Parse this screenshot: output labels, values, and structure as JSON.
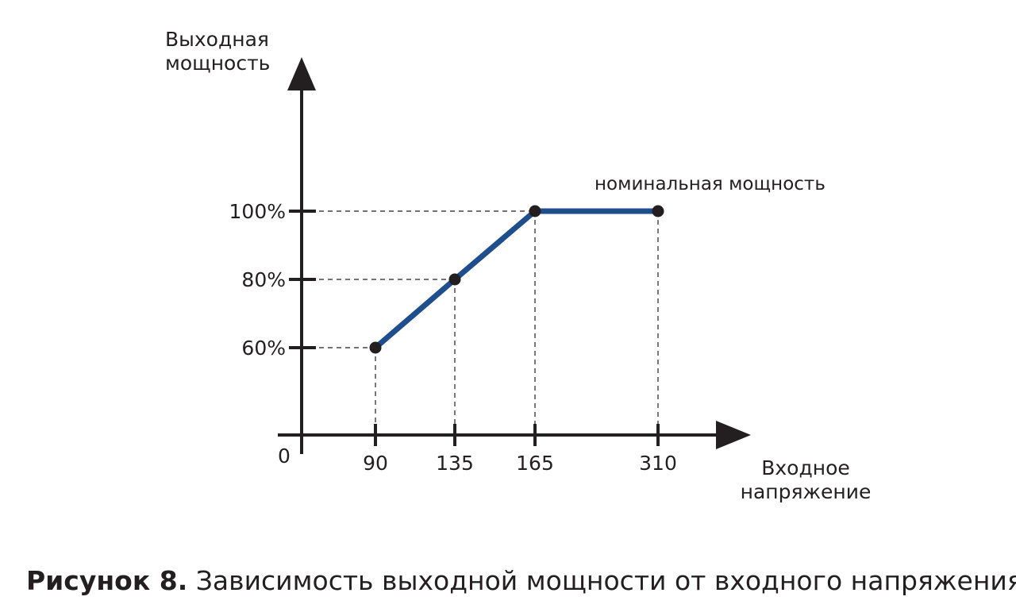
{
  "chart_data": {
    "type": "line",
    "xlabel": "Входное напряжение",
    "xlabel_lines": [
      "Входное",
      "напряжение"
    ],
    "ylabel": "Выходная мощность",
    "ylabel_lines": [
      "Выходная",
      "мощность"
    ],
    "origin_label": "0",
    "x_ticks": [
      {
        "value": 90,
        "label": "90"
      },
      {
        "value": 135,
        "label": "135"
      },
      {
        "value": 165,
        "label": "165"
      },
      {
        "value": 310,
        "label": "310"
      }
    ],
    "y_ticks": [
      {
        "value": 60,
        "label": "60%"
      },
      {
        "value": 80,
        "label": "80%"
      },
      {
        "value": 100,
        "label": "100%"
      }
    ],
    "series": [
      {
        "points": [
          {
            "x": 90,
            "y": 60
          },
          {
            "x": 135,
            "y": 80
          },
          {
            "x": 165,
            "y": 100
          },
          {
            "x": 310,
            "y": 100
          }
        ]
      }
    ],
    "annotations": [
      {
        "text": "номинальная мощность"
      }
    ],
    "guides": "dashed",
    "grid": false,
    "colors": {
      "line": "#1f4e8c",
      "axis": "#231f20",
      "point": "#231f20"
    }
  },
  "caption": {
    "label": "Рисунок 8.",
    "text": " Зависимость выходной мощности от входного напряжения"
  }
}
